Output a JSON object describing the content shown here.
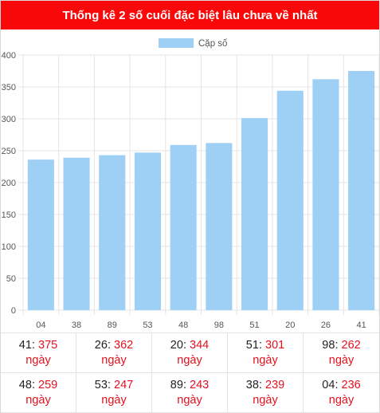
{
  "title": "Thống kê 2 số cuối đặc biệt lâu chưa về nhất",
  "colors": {
    "header": "#f80808",
    "bar": "#9ecff5",
    "value_text": "#e3111d"
  },
  "chart_data": {
    "type": "bar",
    "categories": [
      "04",
      "38",
      "89",
      "53",
      "48",
      "98",
      "51",
      "20",
      "26",
      "41"
    ],
    "series": [
      {
        "name": "Cặp số",
        "values": [
          236,
          239,
          243,
          247,
          259,
          262,
          301,
          344,
          362,
          375
        ]
      }
    ],
    "ylim": [
      0,
      400
    ],
    "yticks": [
      0,
      50,
      100,
      150,
      200,
      250,
      300,
      350,
      400
    ],
    "grid": true,
    "legend_position": "top-center"
  },
  "stats": [
    {
      "pair": "41",
      "days": "375",
      "unit": "ngày"
    },
    {
      "pair": "26",
      "days": "362",
      "unit": "ngày"
    },
    {
      "pair": "20",
      "days": "344",
      "unit": "ngày"
    },
    {
      "pair": "51",
      "days": "301",
      "unit": "ngày"
    },
    {
      "pair": "98",
      "days": "262",
      "unit": "ngày"
    },
    {
      "pair": "48",
      "days": "259",
      "unit": "ngày"
    },
    {
      "pair": "53",
      "days": "247",
      "unit": "ngày"
    },
    {
      "pair": "89",
      "days": "243",
      "unit": "ngày"
    },
    {
      "pair": "38",
      "days": "239",
      "unit": "ngày"
    },
    {
      "pair": "04",
      "days": "236",
      "unit": "ngày"
    }
  ]
}
